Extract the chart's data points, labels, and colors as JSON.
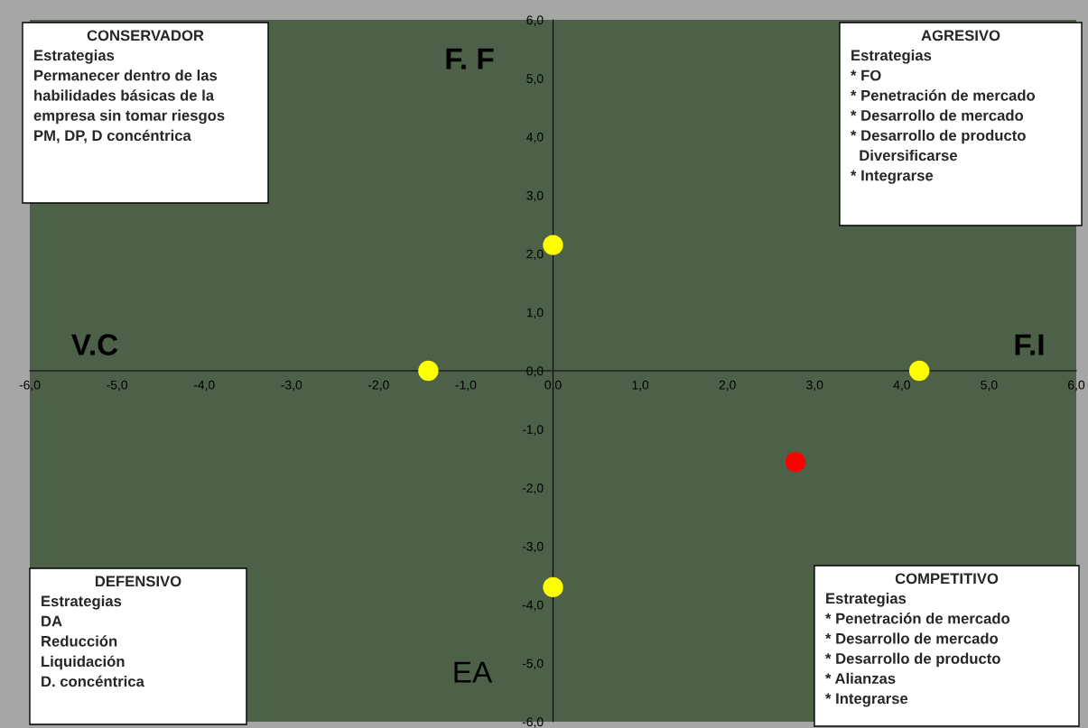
{
  "chart_data": {
    "type": "scatter",
    "series": [
      {
        "color": "#ffff00",
        "x": [
          0,
          -1.43,
          4.2,
          0
        ],
        "values": [
          2.15,
          0,
          0,
          -3.7
        ]
      },
      {
        "color": "#ff0000",
        "x": [
          2.78
        ],
        "values": [
          -1.56
        ]
      }
    ],
    "marker": "circle",
    "grid": false,
    "xlim": [
      -6,
      6
    ],
    "ylim": [
      -6,
      6
    ],
    "xticks": [
      {
        "value": -6,
        "label": "-6,0"
      },
      {
        "value": -5,
        "label": "-5,0"
      },
      {
        "value": -4,
        "label": "-4,0"
      },
      {
        "value": -3,
        "label": "-3,0"
      },
      {
        "value": -2,
        "label": "-2,0"
      },
      {
        "value": -1,
        "label": "-1,0"
      },
      {
        "value": 0,
        "label": "0,0"
      },
      {
        "value": 1,
        "label": "1,0"
      },
      {
        "value": 2,
        "label": "2,0"
      },
      {
        "value": 3,
        "label": "3,0"
      },
      {
        "value": 4,
        "label": "4,0"
      },
      {
        "value": 5,
        "label": "5,0"
      },
      {
        "value": 6,
        "label": "6,0"
      }
    ],
    "yticks": [
      {
        "value": -6,
        "label": "-6,0"
      },
      {
        "value": -5,
        "label": "-5,0"
      },
      {
        "value": -4,
        "label": "-4,0"
      },
      {
        "value": -3,
        "label": "-3,0"
      },
      {
        "value": -2,
        "label": "-2,0"
      },
      {
        "value": -1,
        "label": "-1,0"
      },
      {
        "value": 0,
        "label": "0,0"
      },
      {
        "value": 1,
        "label": "1,0"
      },
      {
        "value": 2,
        "label": "2,0"
      },
      {
        "value": 3,
        "label": "3,0"
      },
      {
        "value": 4,
        "label": "4,0"
      },
      {
        "value": 5,
        "label": "5,0"
      },
      {
        "value": 6,
        "label": "6,0"
      }
    ],
    "annotations": [
      "CONSERVADOR",
      "Estrategias\nPermanecer dentro de las\nhabilidades básicas de la\nempresa sin tomar riesgos\nPM, DP, D concéntrica",
      "AGRESIVO",
      "Estrategias\n* FO\n* Penetración de mercado\n* Desarrollo de mercado\n* Desarrollo de producto\n  Diversificarse\n* Integrarse",
      "DEFENSIVO",
      "Estrategias\nDA\nReducción\nLiquidación\nD. concéntrica",
      "COMPETITIVO",
      "Estrategias\n* Penetración de mercado\n* Desarrollo de mercado\n* Desarrollo de producto\n* Alianzas\n* Integrarse",
      "F. F",
      "V.C",
      "F.I",
      "EA"
    ]
  }
}
